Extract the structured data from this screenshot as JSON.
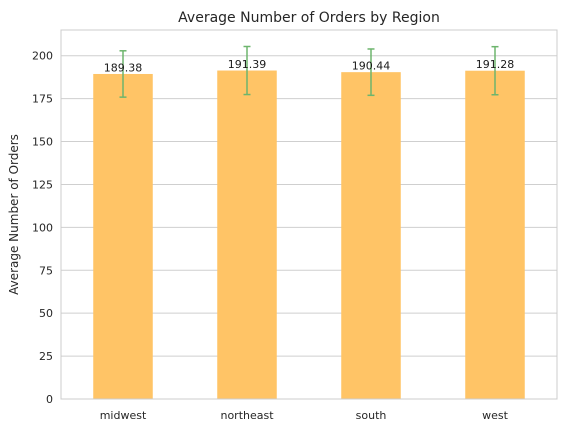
{
  "chart_data": {
    "type": "bar",
    "title": "Average Number of Orders by Region",
    "xlabel": "",
    "ylabel": "Average Number of Orders",
    "categories": [
      "midwest",
      "northeast",
      "south",
      "west"
    ],
    "values": [
      189.38,
      191.39,
      190.44,
      191.28
    ],
    "value_labels": [
      "189.38",
      "191.39",
      "190.44",
      "191.28"
    ],
    "error": [
      13.5,
      14.0,
      13.5,
      14.0
    ],
    "ylim": [
      0,
      215
    ],
    "yticks": [
      0,
      25,
      50,
      75,
      100,
      125,
      150,
      175,
      200
    ],
    "ytick_labels": [
      "0",
      "25",
      "50",
      "75",
      "100",
      "125",
      "150",
      "175",
      "200"
    ],
    "grid": true,
    "colors": {
      "bar": "#FFC466",
      "error": "#6DB56D",
      "grid": "#CFCFCF",
      "axes": "#CCCCCC"
    }
  }
}
